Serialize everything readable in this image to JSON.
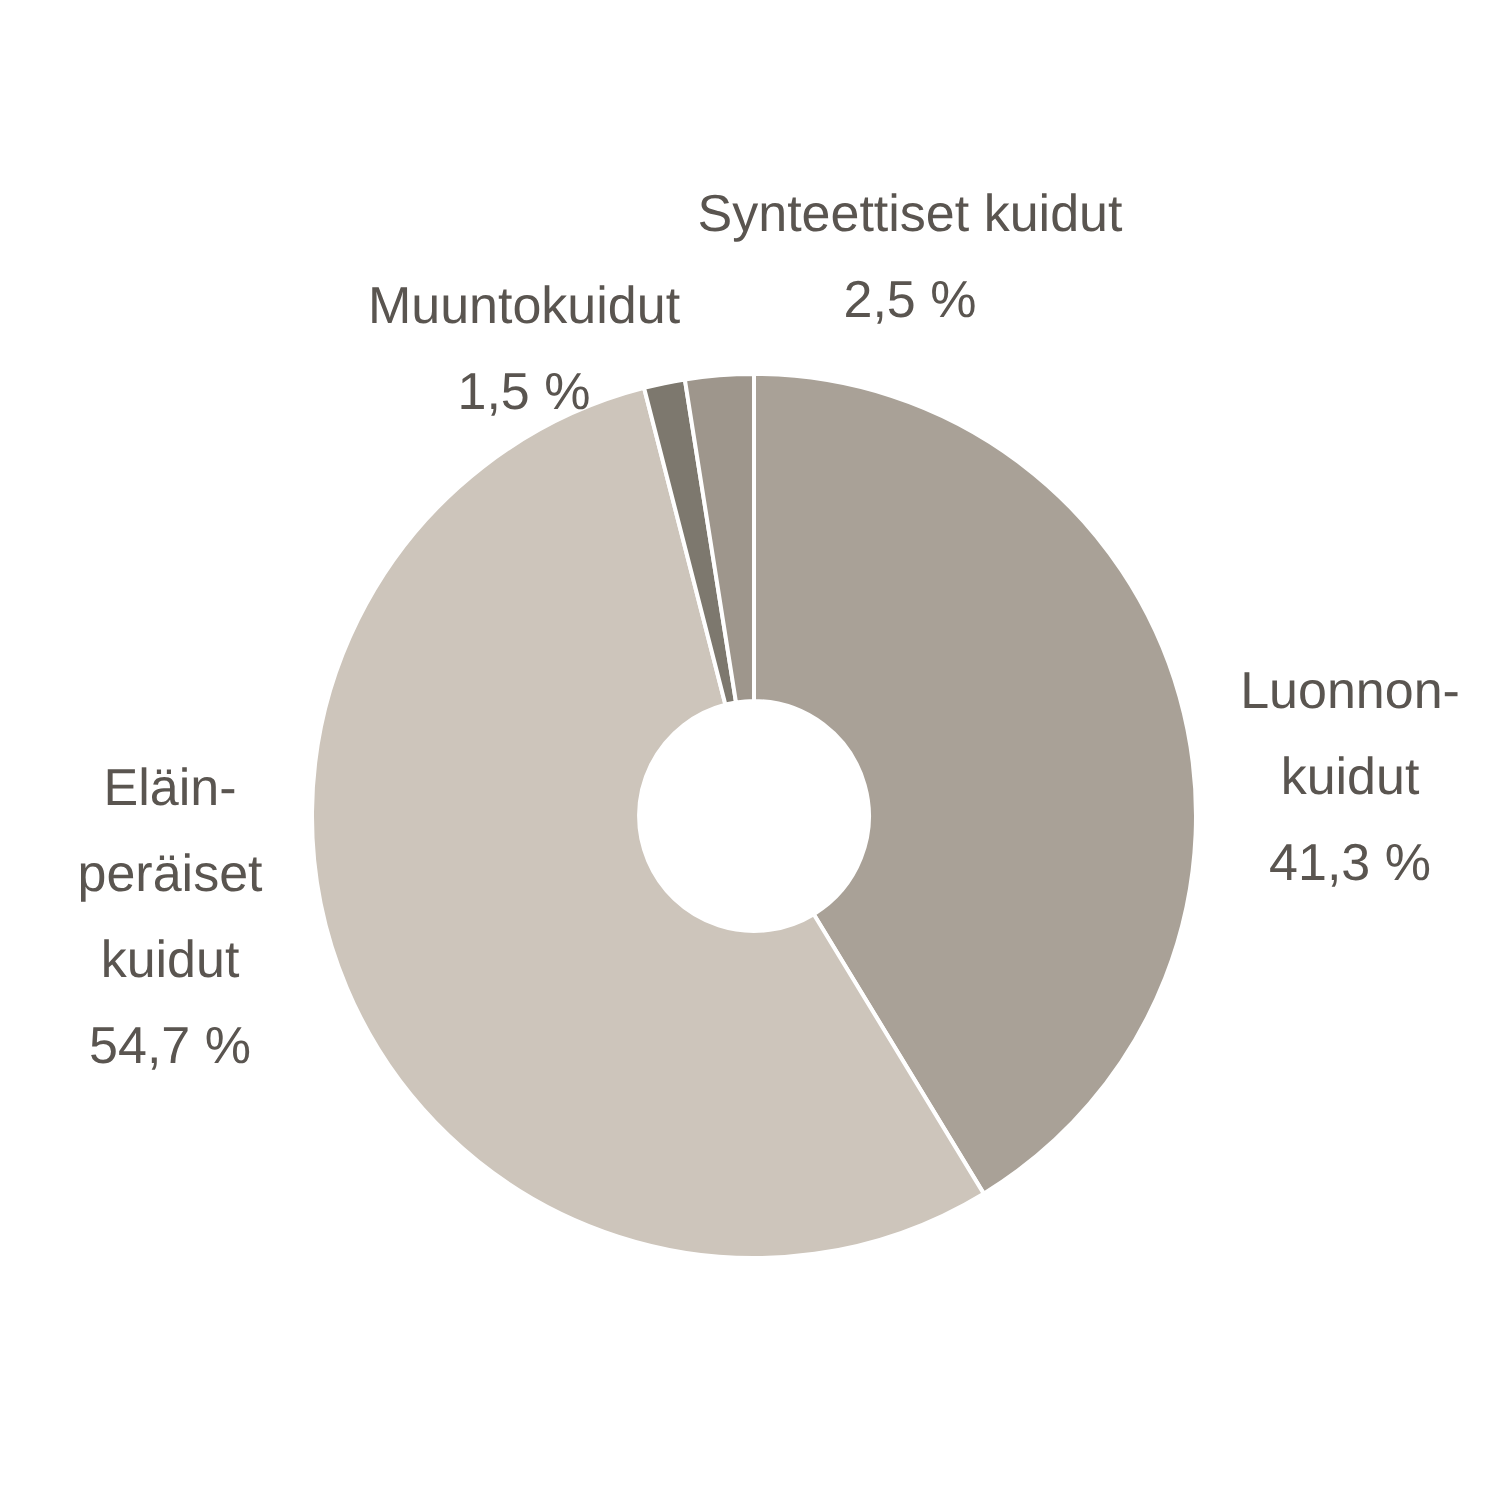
{
  "chart_data": {
    "type": "donut",
    "categories": [
      "Luonnon-\nkuidut",
      "Eläin-\nperäiset\nkuidut",
      "Muuntokuidut",
      "Synteettiset kuidut"
    ],
    "values": [
      41.3,
      54.7,
      1.5,
      2.5
    ],
    "value_labels": [
      "41,3 %",
      "54,7 %",
      "1,5 %",
      "2,5 %"
    ],
    "colors": [
      "#a9a197",
      "#cdc5bb",
      "#7d786e",
      "#9e968c"
    ],
    "legend": false
  }
}
